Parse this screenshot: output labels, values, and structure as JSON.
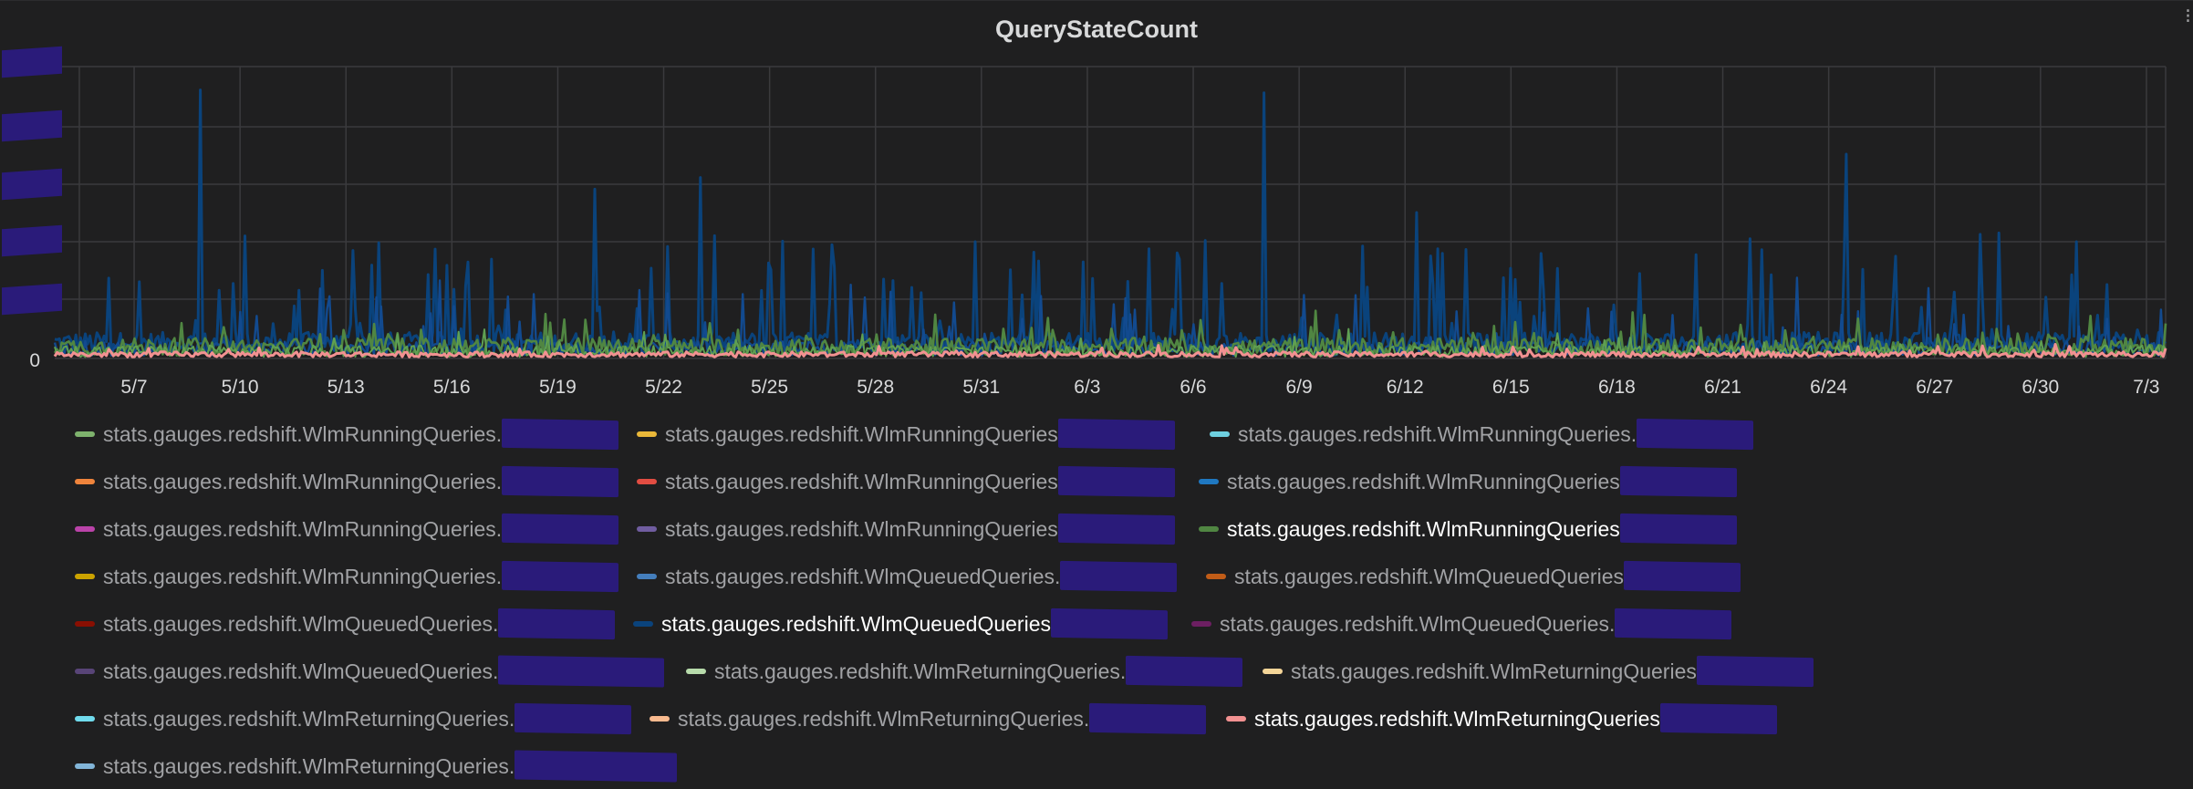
{
  "panel": {
    "menu_icon": "ellipsis-icon"
  },
  "chart_data": {
    "type": "line",
    "title": "QueryStateCount",
    "xlabel": "",
    "ylabel": "",
    "y_tick_labels": [
      "0"
    ],
    "x_tick_labels": [
      "5/7",
      "5/10",
      "5/13",
      "5/16",
      "5/19",
      "5/22",
      "5/25",
      "5/28",
      "5/31",
      "6/3",
      "6/6",
      "6/9",
      "6/12",
      "6/15",
      "6/18",
      "6/21",
      "6/24",
      "6/27",
      "6/30",
      "7/3"
    ],
    "x_range": [
      "5/5",
      "7/4"
    ],
    "grid": true,
    "legend_placement": "bottom",
    "series": [
      {
        "label": "stats.gauges.redshift.WlmRunningQueries.",
        "color": "#7eb26d"
      },
      {
        "label": "stats.gauges.redshift.WlmRunningQueries",
        "color": "#eab839"
      },
      {
        "label": "stats.gauges.redshift.WlmRunningQueries.",
        "color": "#6ed0e0"
      },
      {
        "label": "stats.gauges.redshift.WlmRunningQueries.",
        "color": "#ef843c"
      },
      {
        "label": "stats.gauges.redshift.WlmRunningQueries",
        "color": "#e24d42"
      },
      {
        "label": "stats.gauges.redshift.WlmRunningQueries",
        "color": "#1f78c1"
      },
      {
        "label": "stats.gauges.redshift.WlmRunningQueries.",
        "color": "#ba43a9"
      },
      {
        "label": "stats.gauges.redshift.WlmRunningQueries",
        "color": "#705da0"
      },
      {
        "label": "stats.gauges.redshift.WlmRunningQueries",
        "color": "#508642",
        "active": true
      },
      {
        "label": "stats.gauges.redshift.WlmRunningQueries.",
        "color": "#cca300"
      },
      {
        "label": "stats.gauges.redshift.WlmQueuedQueries.",
        "color": "#447ebc"
      },
      {
        "label": "stats.gauges.redshift.WlmQueuedQueries",
        "color": "#c15c17"
      },
      {
        "label": "stats.gauges.redshift.WlmQueuedQueries.",
        "color": "#890f02"
      },
      {
        "label": "stats.gauges.redshift.WlmQueuedQueries",
        "color": "#0a437c",
        "active": true
      },
      {
        "label": "stats.gauges.redshift.WlmQueuedQueries.",
        "color": "#6d1f62"
      },
      {
        "label": "stats.gauges.redshift.WlmQueuedQueries.",
        "color": "#584477"
      },
      {
        "label": "stats.gauges.redshift.WlmReturningQueries.",
        "color": "#b7dbab"
      },
      {
        "label": "stats.gauges.redshift.WlmReturningQueries",
        "color": "#f4d598"
      },
      {
        "label": "stats.gauges.redshift.WlmReturningQueries.",
        "color": "#70dbed"
      },
      {
        "label": "stats.gauges.redshift.WlmReturningQueries.",
        "color": "#f9ba8f"
      },
      {
        "label": "stats.gauges.redshift.WlmReturningQueries",
        "color": "#f29191",
        "active": true
      },
      {
        "label": "stats.gauges.redshift.WlmReturningQueries.",
        "color": "#82b5d8"
      }
    ]
  }
}
